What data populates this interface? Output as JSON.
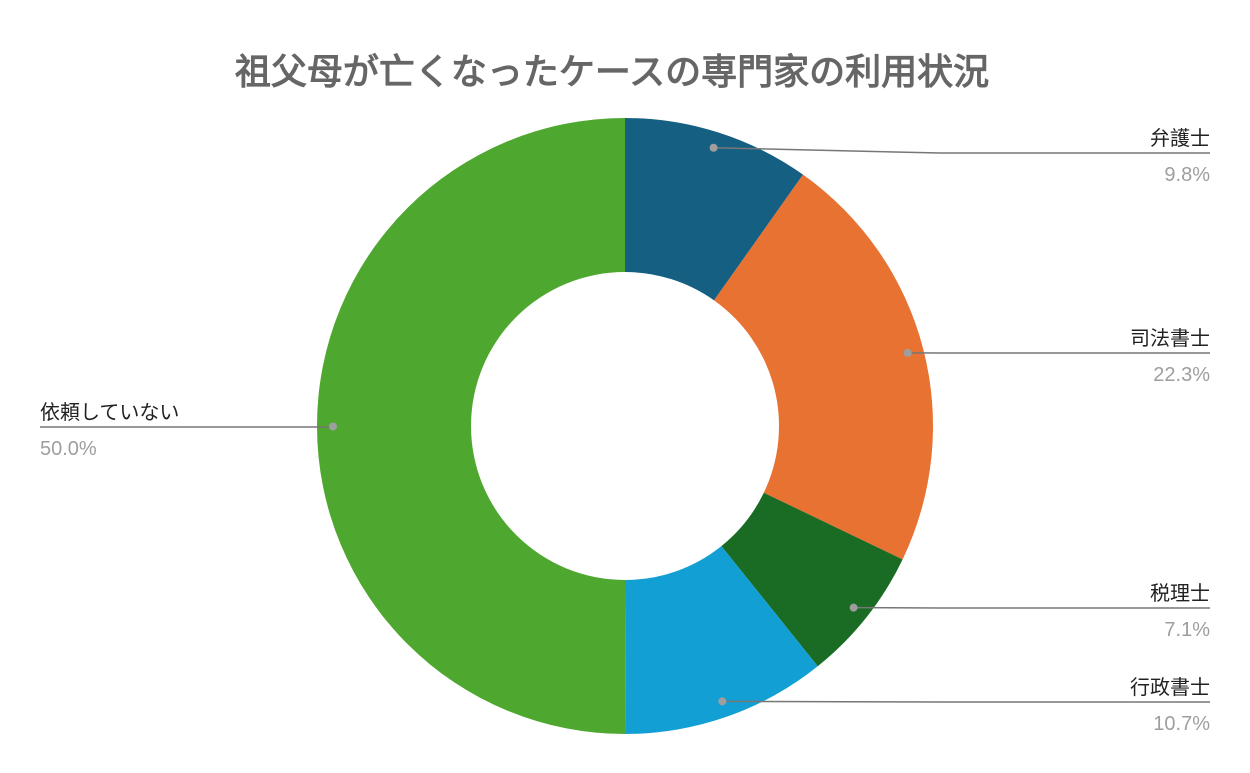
{
  "chart_data": {
    "type": "pie",
    "donut": true,
    "title": "祖父母が亡くなったケースの専門家の利用状況",
    "start": "top",
    "direction": "clockwise",
    "slices": [
      {
        "label": "弁護士",
        "value": 9.8,
        "display": "9.8%",
        "color": "#155f82"
      },
      {
        "label": "司法書士",
        "value": 22.3,
        "display": "22.3%",
        "color": "#e87232"
      },
      {
        "label": "税理士",
        "value": 7.1,
        "display": "7.1%",
        "color": "#1a6b24"
      },
      {
        "label": "行政書士",
        "value": 10.7,
        "display": "10.7%",
        "color": "#129fd4"
      },
      {
        "label": "依頼していない",
        "value": 50.0,
        "display": "50.0%",
        "color": "#4ea72e"
      }
    ]
  }
}
